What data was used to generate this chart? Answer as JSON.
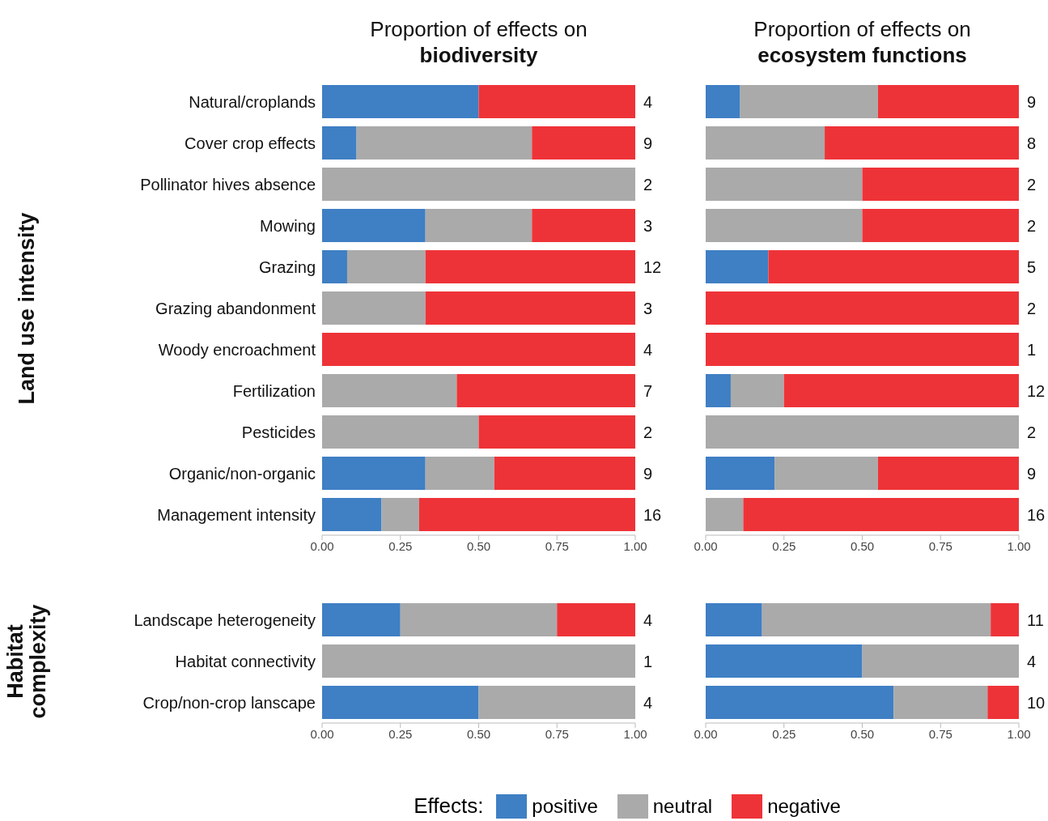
{
  "chart_data": [
    {
      "type": "bar",
      "orientation": "horizontal",
      "stacked": true,
      "title": "Proportion of effects on",
      "subtitle": "biodiversity",
      "ylabel": "Land use intensity",
      "categories": [
        "Natural/croplands",
        "Cover crop effects",
        "Pollinator hives absence",
        "Mowing",
        "Grazing",
        "Grazing abandonment",
        "Woody encroachment",
        "Fertilization",
        "Pesticides",
        "Organic/non-organic",
        "Management intensity"
      ],
      "series": [
        {
          "color": "#3f7fc4",
          "values": [
            0.5,
            0.11,
            0,
            0.33,
            0.08,
            0,
            0,
            0,
            0,
            0.33,
            0.19
          ]
        },
        {
          "color": "#aaaaaa",
          "values": [
            0,
            0.56,
            1,
            0.34,
            0.25,
            0.33,
            0,
            0.43,
            0.5,
            0.22,
            0.12
          ]
        },
        {
          "color": "#ee3338",
          "values": [
            0.5,
            0.33,
            0,
            0.33,
            0.67,
            0.67,
            1,
            0.57,
            0.5,
            0.45,
            0.69
          ]
        }
      ],
      "annotations": [
        "4",
        "9",
        "2",
        "3",
        "12",
        "3",
        "4",
        "7",
        "2",
        "9",
        "16"
      ],
      "xlim": [
        0,
        1
      ],
      "xticks": [
        {
          "value": 0,
          "label": "0.00"
        },
        {
          "value": 0.25,
          "label": "0.25"
        },
        {
          "value": 0.5,
          "label": "0.50"
        },
        {
          "value": 0.75,
          "label": "0.75"
        },
        {
          "value": 1,
          "label": "1.00"
        }
      ]
    },
    {
      "type": "bar",
      "orientation": "horizontal",
      "stacked": true,
      "title": "Proportion of effects on",
      "subtitle": "ecosystem functions",
      "tick_labels": "x",
      "categories": [
        null,
        null,
        null,
        null,
        null,
        null,
        null,
        null,
        null,
        null,
        null
      ],
      "series": [
        {
          "color": "#3f7fc4",
          "values": [
            0.11,
            0,
            0,
            0,
            0.2,
            0,
            0,
            0.08,
            0,
            0.22,
            0
          ]
        },
        {
          "color": "#aaaaaa",
          "values": [
            0.44,
            0.38,
            0.5,
            0.5,
            0,
            0,
            0,
            0.17,
            1,
            0.33,
            0.12
          ]
        },
        {
          "color": "#ee3338",
          "values": [
            0.45,
            0.62,
            0.5,
            0.5,
            0.8,
            1,
            1,
            0.75,
            0,
            0.45,
            0.88
          ]
        }
      ],
      "annotations": [
        "9",
        "8",
        "2",
        "2",
        "5",
        "2",
        "1",
        "12",
        "2",
        "9",
        "16"
      ],
      "xlim": [
        0,
        1
      ],
      "xticks": [
        {
          "value": 0,
          "label": "0.00"
        },
        {
          "value": 0.25,
          "label": "0.25"
        },
        {
          "value": 0.5,
          "label": "0.50"
        },
        {
          "value": 0.75,
          "label": "0.75"
        },
        {
          "value": 1,
          "label": "1.00"
        }
      ]
    },
    {
      "type": "bar",
      "orientation": "horizontal",
      "stacked": true,
      "ylabel": "Habitat complexity",
      "categories": [
        "Landscape heterogeneity",
        "Habitat connectivity",
        "Crop/non-crop lanscape"
      ],
      "series": [
        {
          "color": "#3f7fc4",
          "values": [
            0.25,
            0,
            0.5
          ]
        },
        {
          "color": "#aaaaaa",
          "values": [
            0.5,
            1,
            0.5
          ]
        },
        {
          "color": "#ee3338",
          "values": [
            0.25,
            0,
            0
          ]
        }
      ],
      "annotations": [
        "4",
        "1",
        "4"
      ],
      "xlim": [
        0,
        1
      ],
      "xticks": [
        {
          "value": 0,
          "label": "0.00"
        },
        {
          "value": 0.25,
          "label": "0.25"
        },
        {
          "value": 0.5,
          "label": "0.50"
        },
        {
          "value": 0.75,
          "label": "0.75"
        },
        {
          "value": 1,
          "label": "1.00"
        }
      ]
    },
    {
      "type": "bar",
      "orientation": "horizontal",
      "stacked": true,
      "tick_labels": "x",
      "legend": "bottom",
      "legend_title": "Effects:",
      "categories": [
        null,
        null,
        null
      ],
      "series": [
        {
          "name": "positive",
          "color": "#3f7fc4",
          "values": [
            0.18,
            0.5,
            0.6
          ]
        },
        {
          "name": "neutral",
          "color": "#aaaaaa",
          "values": [
            0.73,
            0.5,
            0.3
          ]
        },
        {
          "name": "negative",
          "color": "#ee3338",
          "values": [
            0.09,
            0,
            0.1
          ]
        }
      ],
      "annotations": [
        "11",
        "4",
        "10"
      ],
      "xlim": [
        0,
        1
      ],
      "xticks": [
        {
          "value": 0,
          "label": "0.00"
        },
        {
          "value": 0.25,
          "label": "0.25"
        },
        {
          "value": 0.5,
          "label": "0.50"
        },
        {
          "value": 0.75,
          "label": "0.75"
        },
        {
          "value": 1,
          "label": "1.00"
        }
      ]
    }
  ]
}
